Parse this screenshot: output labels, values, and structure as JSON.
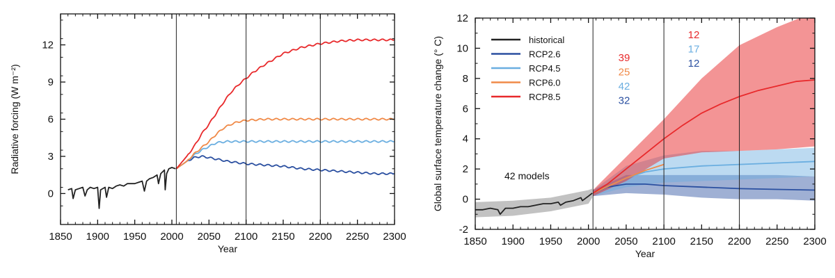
{
  "chart_data": [
    {
      "type": "line",
      "xlabel": "Year",
      "ylabel": "Radiative  forcing (W m⁻²)",
      "xlim": [
        1850,
        2300
      ],
      "ylim": [
        -2.5,
        14.5
      ],
      "x_ticks": [
        "1850",
        "1900",
        "1950",
        "2000",
        "2050",
        "2100",
        "2150",
        "2200",
        "2250",
        "2300"
      ],
      "y_ticks": [
        "0",
        "3",
        "6",
        "9",
        "12"
      ],
      "vertical_lines": [
        2006,
        2100,
        2200
      ],
      "colors": {
        "historical": "#222222",
        "RCP2.6": "#2a4fa0",
        "RCP4.5": "#6aaee0",
        "RCP6.0": "#f08a48",
        "RCP8.5": "#e8292b"
      },
      "series": [
        {
          "name": "historical",
          "points": [
            [
              1860,
              0.3
            ],
            [
              1865,
              0.4
            ],
            [
              1867,
              -0.4
            ],
            [
              1870,
              0.3
            ],
            [
              1875,
              0.4
            ],
            [
              1880,
              0.5
            ],
            [
              1883,
              -0.2
            ],
            [
              1886,
              0.3
            ],
            [
              1890,
              0.5
            ],
            [
              1895,
              0.4
            ],
            [
              1900,
              0.5
            ],
            [
              1902,
              -1.2
            ],
            [
              1904,
              0.3
            ],
            [
              1910,
              0.5
            ],
            [
              1912,
              -0.3
            ],
            [
              1915,
              0.5
            ],
            [
              1920,
              0.4
            ],
            [
              1925,
              0.6
            ],
            [
              1930,
              0.7
            ],
            [
              1935,
              0.6
            ],
            [
              1940,
              0.8
            ],
            [
              1945,
              0.8
            ],
            [
              1950,
              0.8
            ],
            [
              1955,
              0.9
            ],
            [
              1960,
              1.0
            ],
            [
              1963,
              0.2
            ],
            [
              1966,
              1.0
            ],
            [
              1970,
              1.2
            ],
            [
              1975,
              1.3
            ],
            [
              1980,
              1.5
            ],
            [
              1982,
              0.8
            ],
            [
              1985,
              1.6
            ],
            [
              1990,
              1.9
            ],
            [
              1991,
              0.3
            ],
            [
              1993,
              1.6
            ],
            [
              1996,
              2.0
            ],
            [
              2000,
              2.1
            ],
            [
              2005,
              2.0
            ]
          ]
        },
        {
          "name": "RCP2.6",
          "points": [
            [
              2006,
              2.0
            ],
            [
              2020,
              2.6
            ],
            [
              2030,
              2.9
            ],
            [
              2040,
              3.0
            ],
            [
              2050,
              2.9
            ],
            [
              2075,
              2.6
            ],
            [
              2100,
              2.4
            ],
            [
              2125,
              2.3
            ],
            [
              2150,
              2.2
            ],
            [
              2175,
              2.0
            ],
            [
              2200,
              1.9
            ],
            [
              2225,
              1.8
            ],
            [
              2250,
              1.7
            ],
            [
              2275,
              1.6
            ],
            [
              2300,
              1.6
            ]
          ]
        },
        {
          "name": "RCP4.5",
          "points": [
            [
              2006,
              2.0
            ],
            [
              2020,
              2.6
            ],
            [
              2030,
              3.1
            ],
            [
              2040,
              3.5
            ],
            [
              2050,
              3.8
            ],
            [
              2060,
              4.1
            ],
            [
              2075,
              4.2
            ],
            [
              2100,
              4.2
            ],
            [
              2150,
              4.2
            ],
            [
              2200,
              4.2
            ],
            [
              2250,
              4.2
            ],
            [
              2300,
              4.2
            ]
          ]
        },
        {
          "name": "RCP6.0",
          "points": [
            [
              2006,
              2.0
            ],
            [
              2020,
              2.6
            ],
            [
              2030,
              3.2
            ],
            [
              2040,
              3.7
            ],
            [
              2050,
              4.2
            ],
            [
              2060,
              4.8
            ],
            [
              2070,
              5.3
            ],
            [
              2080,
              5.6
            ],
            [
              2090,
              5.8
            ],
            [
              2100,
              5.9
            ],
            [
              2125,
              6.0
            ],
            [
              2150,
              6.0
            ],
            [
              2200,
              6.0
            ],
            [
              2250,
              6.0
            ],
            [
              2300,
              6.0
            ]
          ]
        },
        {
          "name": "RCP8.5",
          "points": [
            [
              2006,
              2.0
            ],
            [
              2020,
              3.0
            ],
            [
              2030,
              3.8
            ],
            [
              2040,
              4.8
            ],
            [
              2050,
              5.6
            ],
            [
              2060,
              6.5
            ],
            [
              2070,
              7.4
            ],
            [
              2080,
              8.2
            ],
            [
              2090,
              8.8
            ],
            [
              2100,
              9.3
            ],
            [
              2110,
              9.8
            ],
            [
              2125,
              10.4
            ],
            [
              2150,
              11.3
            ],
            [
              2175,
              11.8
            ],
            [
              2200,
              12.1
            ],
            [
              2225,
              12.3
            ],
            [
              2250,
              12.4
            ],
            [
              2275,
              12.4
            ],
            [
              2300,
              12.4
            ]
          ]
        }
      ]
    },
    {
      "type": "line",
      "xlabel": "Year",
      "ylabel": "Global surface temperature change (° C)",
      "xlim": [
        1850,
        2300
      ],
      "ylim": [
        -2,
        12
      ],
      "x_ticks": [
        "1850",
        "1900",
        "1950",
        "2000",
        "2050",
        "2100",
        "2150",
        "2200",
        "2250",
        "2300"
      ],
      "y_ticks": [
        "-2",
        "0",
        "2",
        "4",
        "6",
        "8",
        "10",
        "12"
      ],
      "vertical_lines": [
        2006,
        2100,
        2200
      ],
      "annotation": "42 models",
      "legend": {
        "placement": "top-left",
        "entries": [
          "historical",
          "RCP2.6",
          "RCP4.5",
          "RCP6.0",
          "RCP8.5"
        ]
      },
      "model_counts": {
        "2100": [
          {
            "text": "39",
            "series": "RCP8.5"
          },
          {
            "text": "25",
            "series": "RCP6.0"
          },
          {
            "text": "42",
            "series": "RCP4.5"
          },
          {
            "text": "32",
            "series": "RCP2.6"
          }
        ],
        "2300": [
          {
            "text": "12",
            "series": "RCP8.5"
          },
          {
            "text": "17",
            "series": "RCP4.5"
          },
          {
            "text": "12",
            "series": "RCP2.6"
          }
        ]
      },
      "colors": {
        "historical": "#222222",
        "RCP2.6": "#2a4fa0",
        "RCP4.5": "#6aaee0",
        "RCP6.0": "#f08a48",
        "RCP8.5": "#e8292b"
      },
      "series": [
        {
          "name": "historical",
          "points": [
            [
              1850,
              -0.7
            ],
            [
              1860,
              -0.7
            ],
            [
              1870,
              -0.6
            ],
            [
              1880,
              -0.7
            ],
            [
              1883,
              -1.0
            ],
            [
              1890,
              -0.6
            ],
            [
              1900,
              -0.6
            ],
            [
              1910,
              -0.5
            ],
            [
              1920,
              -0.5
            ],
            [
              1930,
              -0.4
            ],
            [
              1940,
              -0.3
            ],
            [
              1950,
              -0.3
            ],
            [
              1960,
              -0.2
            ],
            [
              1963,
              -0.4
            ],
            [
              1970,
              -0.2
            ],
            [
              1980,
              -0.1
            ],
            [
              1990,
              0.1
            ],
            [
              1992,
              -0.1
            ],
            [
              2000,
              0.2
            ],
            [
              2005,
              0.4
            ]
          ],
          "band": {
            "upper": [
              [
                1850,
                -0.2
              ],
              [
                1900,
                -0.1
              ],
              [
                1950,
                0.1
              ],
              [
                2000,
                0.6
              ],
              [
                2005,
                0.7
              ]
            ],
            "lower": [
              [
                1850,
                -1.2
              ],
              [
                1900,
                -1.1
              ],
              [
                1950,
                -0.8
              ],
              [
                2000,
                -0.3
              ],
              [
                2005,
                0.1
              ]
            ]
          }
        },
        {
          "name": "RCP2.6",
          "points": [
            [
              2006,
              0.4
            ],
            [
              2025,
              0.8
            ],
            [
              2050,
              1.0
            ],
            [
              2075,
              1.0
            ],
            [
              2100,
              0.9
            ],
            [
              2150,
              0.8
            ],
            [
              2200,
              0.7
            ],
            [
              2250,
              0.65
            ],
            [
              2300,
              0.6
            ]
          ],
          "band": {
            "upper": [
              [
                2006,
                0.6
              ],
              [
                2050,
                1.6
              ],
              [
                2100,
                1.6
              ],
              [
                2150,
                1.6
              ],
              [
                2200,
                1.6
              ],
              [
                2250,
                1.6
              ],
              [
                2300,
                1.5
              ]
            ],
            "lower": [
              [
                2006,
                0.2
              ],
              [
                2050,
                0.4
              ],
              [
                2100,
                0.3
              ],
              [
                2150,
                0.1
              ],
              [
                2200,
                0.0
              ],
              [
                2250,
                0.0
              ],
              [
                2300,
                -0.1
              ]
            ]
          }
        },
        {
          "name": "RCP4.5",
          "points": [
            [
              2006,
              0.4
            ],
            [
              2050,
              1.4
            ],
            [
              2075,
              1.8
            ],
            [
              2100,
              2.0
            ],
            [
              2150,
              2.2
            ],
            [
              2200,
              2.3
            ],
            [
              2250,
              2.4
            ],
            [
              2300,
              2.5
            ]
          ],
          "band": {
            "upper": [
              [
                2006,
                0.6
              ],
              [
                2050,
                2.2
              ],
              [
                2100,
                2.9
              ],
              [
                2150,
                3.2
              ],
              [
                2200,
                3.2
              ],
              [
                2250,
                3.3
              ],
              [
                2300,
                3.4
              ]
            ],
            "lower": [
              [
                2006,
                0.2
              ],
              [
                2050,
                0.8
              ],
              [
                2100,
                1.1
              ],
              [
                2150,
                1.2
              ],
              [
                2200,
                1.3
              ],
              [
                2250,
                1.4
              ],
              [
                2300,
                1.5
              ]
            ]
          }
        },
        {
          "name": "RCP6.0",
          "points": [
            [
              2006,
              0.4
            ],
            [
              2050,
              1.4
            ],
            [
              2075,
              1.9
            ],
            [
              2100,
              2.3
            ]
          ]
        },
        {
          "name": "RCP8.5",
          "points": [
            [
              2006,
              0.4
            ],
            [
              2025,
              1.0
            ],
            [
              2050,
              2.0
            ],
            [
              2075,
              3.0
            ],
            [
              2100,
              4.0
            ],
            [
              2125,
              4.9
            ],
            [
              2150,
              5.7
            ],
            [
              2175,
              6.3
            ],
            [
              2200,
              6.8
            ],
            [
              2225,
              7.2
            ],
            [
              2250,
              7.5
            ],
            [
              2275,
              7.8
            ],
            [
              2300,
              7.9
            ]
          ],
          "band": {
            "upper": [
              [
                2006,
                0.6
              ],
              [
                2050,
                2.8
              ],
              [
                2100,
                5.3
              ],
              [
                2150,
                8.0
              ],
              [
                2200,
                10.2
              ],
              [
                2250,
                11.4
              ],
              [
                2280,
                12.0
              ],
              [
                2300,
                12.0
              ]
            ],
            "lower": [
              [
                2006,
                0.2
              ],
              [
                2050,
                1.2
              ],
              [
                2100,
                2.7
              ],
              [
                2150,
                3.1
              ],
              [
                2200,
                3.2
              ],
              [
                2250,
                3.3
              ],
              [
                2300,
                3.5
              ]
            ]
          }
        }
      ]
    }
  ]
}
